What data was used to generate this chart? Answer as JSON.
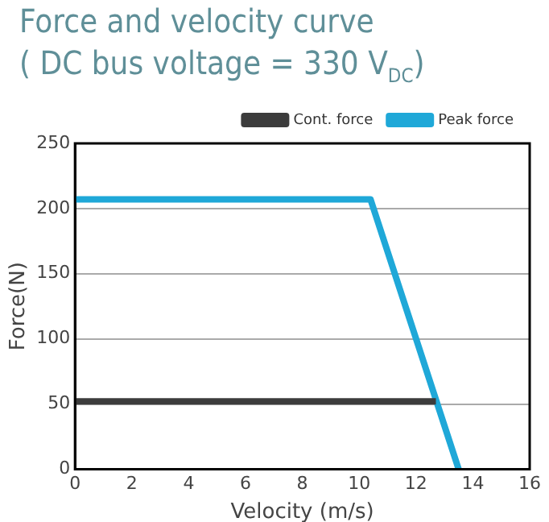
{
  "chart_data": {
    "type": "line",
    "title": "Force and velocity curve",
    "subtitle": "( DC bus voltage = 330 V$_{DC}$)",
    "xlabel": "Velocity (m/s)",
    "ylabel": "Force(N)",
    "series": [
      {
        "name": "Cont. force",
        "color": "#3c3c3c",
        "x": [
          0,
          12.7
        ],
        "values": [
          52,
          52
        ]
      },
      {
        "name": "Peak force",
        "color": "#1fa8d8",
        "x": [
          0,
          10.4,
          13.5
        ],
        "values": [
          207,
          207,
          0
        ]
      }
    ],
    "xlim": [
      0,
      16
    ],
    "xticks": [
      0,
      2,
      4,
      6,
      8,
      10,
      12,
      14,
      16
    ],
    "ylim": [
      0,
      250
    ],
    "yticks": [
      0,
      50,
      100,
      150,
      200,
      250
    ],
    "grid": "y",
    "legend": "top right",
    "marker": "none",
    "line_style": "solid"
  }
}
